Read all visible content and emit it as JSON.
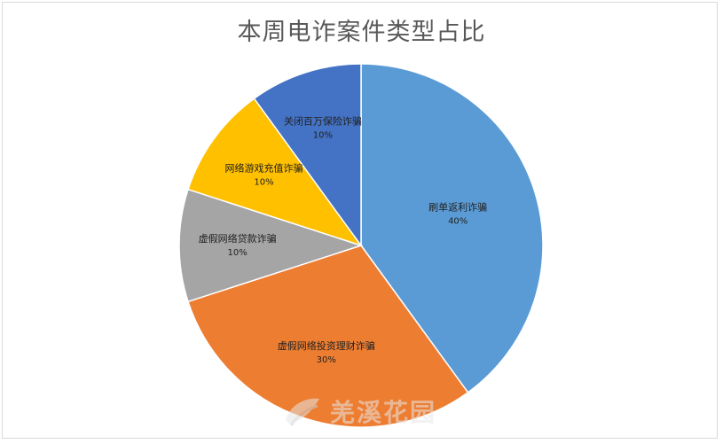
{
  "chart_data": {
    "type": "pie",
    "title": "本周电诈案件类型占比",
    "slices": [
      {
        "label": "刷单返利诈骗",
        "value": 40,
        "percent_label": "40%",
        "color": "#5b9bd5"
      },
      {
        "label": "虚假网络投资理财诈骗",
        "value": 30,
        "percent_label": "30%",
        "color": "#ed7d31"
      },
      {
        "label": "虚假网络贷款诈骗",
        "value": 10,
        "percent_label": "10%",
        "color": "#a5a5a5"
      },
      {
        "label": "网络游戏充值诈骗",
        "value": 10,
        "percent_label": "10%",
        "color": "#ffc000"
      },
      {
        "label": "关闭百万保险诈骗",
        "value": 10,
        "percent_label": "10%",
        "color": "#4472c4"
      }
    ],
    "start": "12 o'clock",
    "direction": "clockwise",
    "legend": "none"
  },
  "watermark": {
    "text": "羌溪花园",
    "icon": "leaf-logo-icon"
  }
}
